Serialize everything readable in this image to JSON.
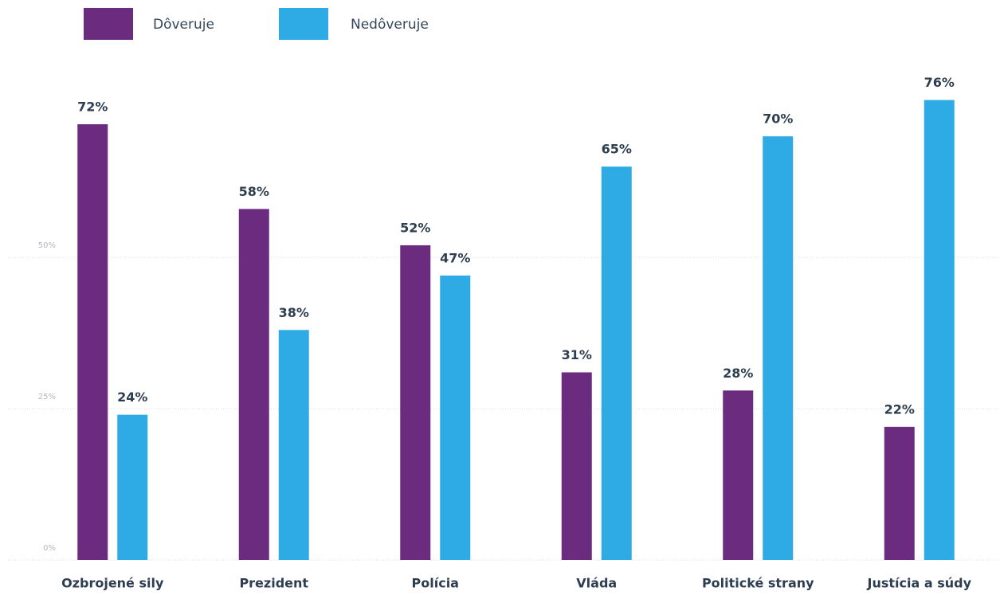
{
  "chart_data": {
    "type": "bar",
    "categories": [
      "Ozbrojené sily",
      "Prezident",
      "Polícia",
      "Vláda",
      "Politické strany",
      "Justícia a súdy"
    ],
    "series": [
      {
        "name": "Dôveruje",
        "color": "#6b2c80",
        "values": [
          72,
          58,
          52,
          31,
          28,
          22
        ],
        "value_labels": [
          "72%",
          "58%",
          "52%",
          "31%",
          "28%",
          "22%"
        ]
      },
      {
        "name": "Nedôveruje",
        "color": "#2eabe4",
        "values": [
          24,
          38,
          47,
          65,
          70,
          76
        ],
        "value_labels": [
          "24%",
          "38%",
          "47%",
          "65%",
          "70%",
          "76%"
        ]
      }
    ],
    "ylim": [
      0,
      82
    ],
    "yticks": [
      {
        "value": 0,
        "label": "0%"
      },
      {
        "value": 25,
        "label": "25%"
      },
      {
        "value": 50,
        "label": "50%"
      }
    ],
    "grid": true,
    "legend": "top-left"
  }
}
